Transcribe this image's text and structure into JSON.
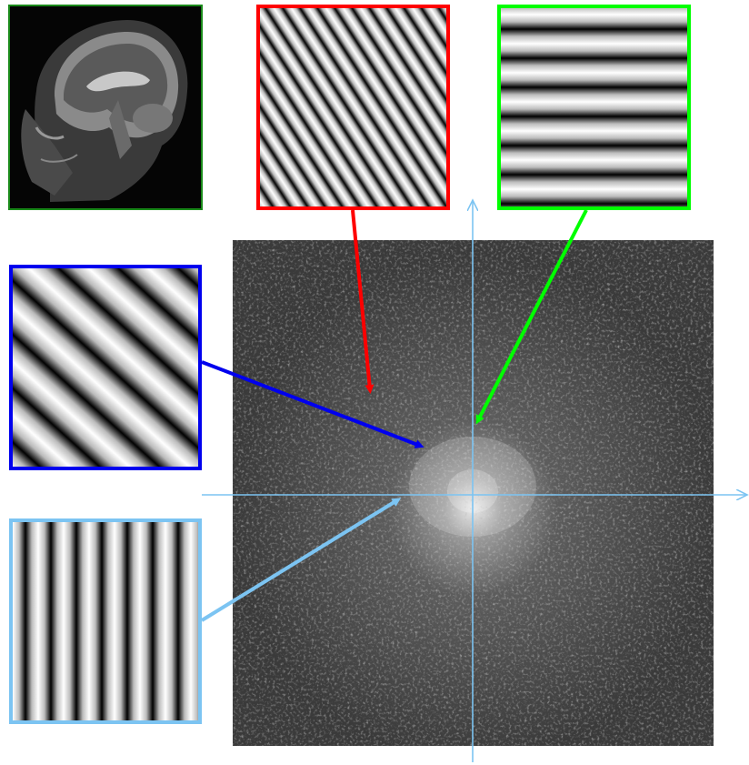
{
  "figure": {
    "source_image": {
      "name": "mri-sagittal-brain",
      "border_color": "#1a8a1a"
    },
    "spectrum": {
      "name": "fourier-magnitude-spectrum",
      "axis_color": "#7cc4f2"
    },
    "basis_images": [
      {
        "id": "red",
        "orientation": "diagonal-fine",
        "border_color": "#ff0000"
      },
      {
        "id": "green",
        "orientation": "horizontal",
        "border_color": "#00ff00"
      },
      {
        "id": "blue",
        "orientation": "diagonal-coarse",
        "border_color": "#0000ee"
      },
      {
        "id": "lightblue",
        "orientation": "vertical",
        "border_color": "#7cc4f2"
      }
    ]
  }
}
